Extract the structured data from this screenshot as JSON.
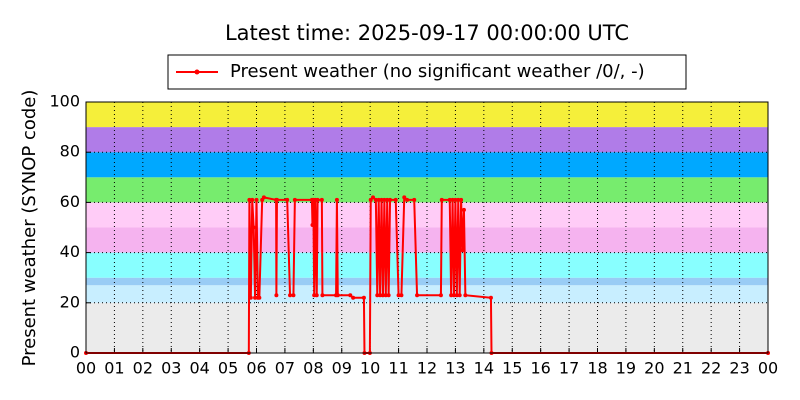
{
  "chart_data": {
    "type": "line",
    "title": "Latest time: 2025-09-17 00:00:00 UTC",
    "ylabel": "Present weather (SYNOP code)",
    "xlim": [
      0,
      24
    ],
    "ylim": [
      0,
      100
    ],
    "yticks": [
      0,
      20,
      40,
      60,
      80,
      100
    ],
    "xticks": [
      {
        "value": 0,
        "label": "00"
      },
      {
        "value": 1,
        "label": "01"
      },
      {
        "value": 2,
        "label": "02"
      },
      {
        "value": 3,
        "label": "03"
      },
      {
        "value": 4,
        "label": "04"
      },
      {
        "value": 5,
        "label": "05"
      },
      {
        "value": 6,
        "label": "06"
      },
      {
        "value": 7,
        "label": "07"
      },
      {
        "value": 8,
        "label": "08"
      },
      {
        "value": 9,
        "label": "09"
      },
      {
        "value": 10,
        "label": "10"
      },
      {
        "value": 11,
        "label": "11"
      },
      {
        "value": 12,
        "label": "12"
      },
      {
        "value": 13,
        "label": "13"
      },
      {
        "value": 14,
        "label": "14"
      },
      {
        "value": 15,
        "label": "15"
      },
      {
        "value": 16,
        "label": "16"
      },
      {
        "value": 17,
        "label": "17"
      },
      {
        "value": 18,
        "label": "18"
      },
      {
        "value": 19,
        "label": "19"
      },
      {
        "value": 20,
        "label": "20"
      },
      {
        "value": 21,
        "label": "21"
      },
      {
        "value": 22,
        "label": "22"
      },
      {
        "value": 23,
        "label": "23"
      },
      {
        "value": 24,
        "label": "00"
      }
    ],
    "grid": true,
    "legend": "top",
    "bands": [
      {
        "from": 0,
        "to": 20,
        "color": "#ebebeb"
      },
      {
        "from": 20,
        "to": 27,
        "color": "#c8eeff"
      },
      {
        "from": 27,
        "to": 30,
        "color": "#99ccf5"
      },
      {
        "from": 30,
        "to": 40,
        "color": "#88ffff"
      },
      {
        "from": 40,
        "to": 50,
        "color": "#f5b3ef"
      },
      {
        "from": 50,
        "to": 60,
        "color": "#ffccf7"
      },
      {
        "from": 60,
        "to": 70,
        "color": "#77ec6e"
      },
      {
        "from": 70,
        "to": 80,
        "color": "#00a8ff"
      },
      {
        "from": 80,
        "to": 90,
        "color": "#b07ce8"
      },
      {
        "from": 90,
        "to": 100,
        "color": "#f5ef3a"
      }
    ],
    "x": [
      0,
      5.73,
      5.75,
      5.8,
      5.85,
      5.9,
      5.95,
      6.0,
      6.05,
      6.1,
      6.2,
      6.26,
      6.69,
      6.7,
      6.72,
      7.08,
      7.18,
      7.3,
      7.35,
      7.95,
      7.97,
      8.0,
      8.03,
      8.07,
      8.12,
      8.15,
      8.3,
      8.32,
      8.8,
      8.83,
      8.86,
      9.3,
      9.4,
      9.78,
      9.8,
      9.99,
      10.02,
      10.1,
      10.2,
      10.25,
      10.3,
      10.35,
      10.4,
      10.45,
      10.5,
      10.55,
      10.6,
      10.65,
      10.7,
      10.9,
      11.0,
      11.1,
      11.2,
      11.3,
      11.55,
      11.65,
      12.49,
      12.52,
      12.8,
      12.85,
      12.9,
      12.95,
      13.0,
      13.05,
      13.1,
      13.15,
      13.2,
      13.25,
      13.3,
      13.35,
      14.25,
      14.27,
      24
    ],
    "series": [
      {
        "name": "Present weather (no significant weather /0/, -)",
        "color": "#ff0000",
        "values": [
          0,
          0,
          61,
          22,
          61,
          50,
          22,
          61,
          22,
          22,
          61,
          62,
          61,
          23,
          61,
          61,
          23,
          23,
          61,
          61,
          51,
          61,
          23,
          61,
          23,
          61,
          61,
          23,
          23,
          61,
          23,
          23,
          22,
          22,
          0,
          0,
          61,
          62,
          61,
          23,
          61,
          23,
          61,
          23,
          61,
          23,
          61,
          23,
          61,
          61,
          23,
          23,
          62,
          61,
          61,
          23,
          23,
          61,
          61,
          23,
          61,
          23,
          61,
          23,
          61,
          23,
          61,
          41,
          57,
          23,
          22,
          0,
          0
        ]
      }
    ]
  }
}
